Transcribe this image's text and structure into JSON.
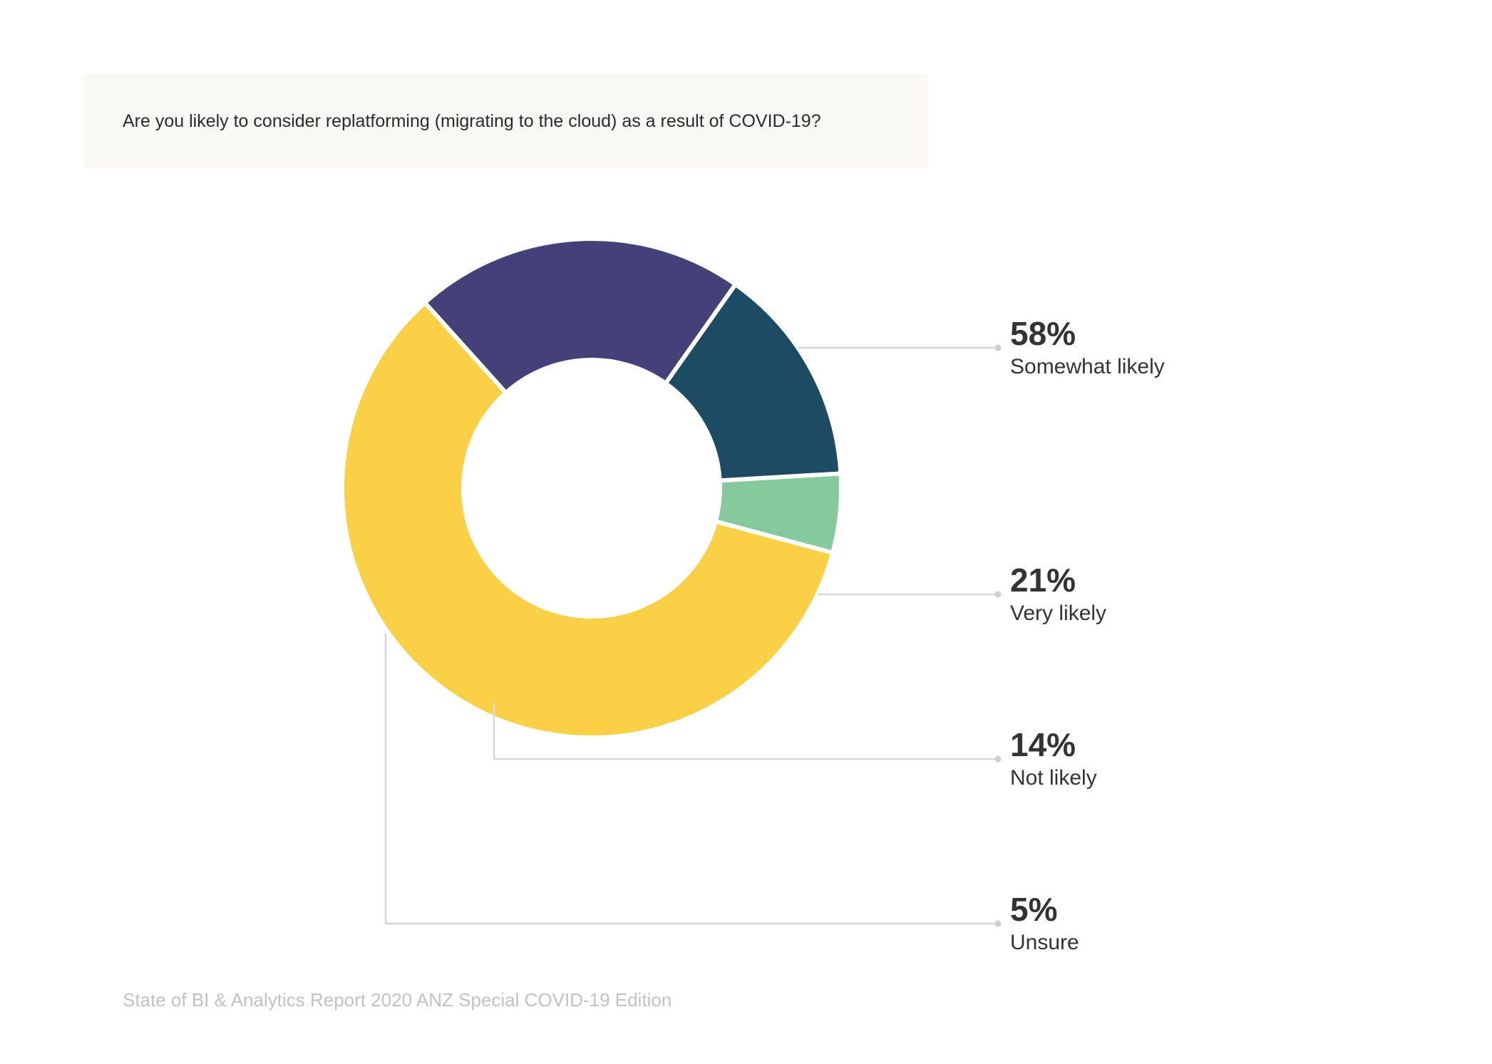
{
  "chart_data": {
    "type": "pie",
    "variant": "donut",
    "title": "Are you likely to consider replatforming (migrating to the cloud) as a result of COVID-19?",
    "slices": [
      {
        "label": "Somewhat likely",
        "value": 58,
        "display": "58%",
        "color": "#fad047"
      },
      {
        "label": "Very likely",
        "value": 21,
        "display": "21%",
        "color": "#444179"
      },
      {
        "label": "Not likely",
        "value": 14,
        "display": "14%",
        "color": "#1d4b64"
      },
      {
        "label": "Unsure",
        "value": 5,
        "display": "5%",
        "color": "#86c99d"
      }
    ],
    "legend_position": "right",
    "source": "State of BI & Analytics Report 2020 ANZ Special COVID-19 Edition"
  }
}
